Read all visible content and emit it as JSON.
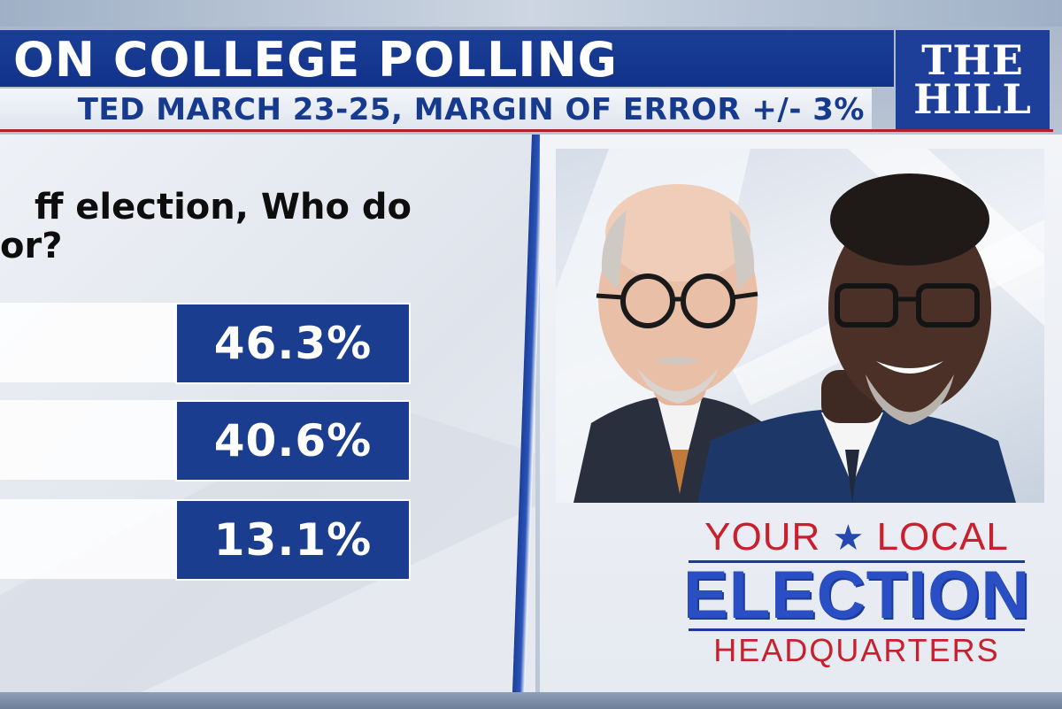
{
  "header": {
    "title": "ON COLLEGE POLLING",
    "subtitle": "TED MARCH 23-25, MARGIN OF ERROR +/- 3%"
  },
  "logo": {
    "line1": "THE",
    "line2": "HILL"
  },
  "question": {
    "line1": "ff election, Who do",
    "line2": "or?"
  },
  "results": [
    {
      "value": "46.3%"
    },
    {
      "value": "40.6%"
    },
    {
      "value": "13.1%"
    }
  ],
  "slogan": {
    "word1": "YOUR",
    "word2": "LOCAL",
    "main": "ELECTION",
    "bottom": "HEADQUARTERS"
  },
  "colors": {
    "brand_blue": "#1b3d8f",
    "accent_red": "#c8202e",
    "logo_blue": "#1d3f99"
  }
}
